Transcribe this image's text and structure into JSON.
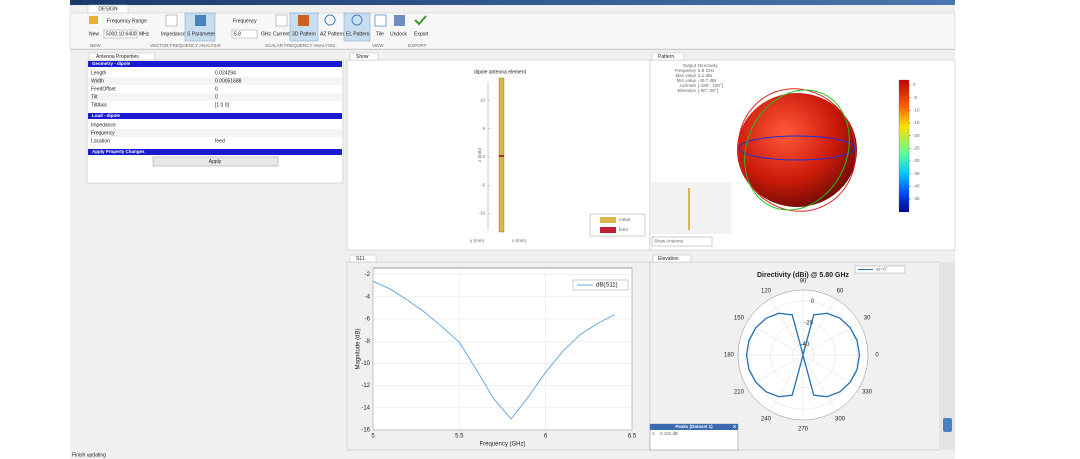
{
  "app": {
    "tab": "DESIGN",
    "status": "Finish updating"
  },
  "toolbar": {
    "frequency_range": "Frequency Range",
    "new": "New",
    "range_input": "5000:10:6400",
    "range_unit": "MHz",
    "impedance": "Impedance",
    "s_parameter": "S Parameter",
    "frequency": "Frequency",
    "freq_input": "5.8",
    "freq_unit": "GHz",
    "current": "Current",
    "pattern_3d": "3D Pattern",
    "az_pattern": "AZ Pattern",
    "el_pattern": "EL Pattern",
    "tile": "Tile",
    "undock": "Undock",
    "export": "Export"
  },
  "sections": [
    "NEW",
    "VECTOR FREQUENCY ANALYSIS",
    "SCALAR FREQUENCY ANALYSIS",
    "VIEW",
    "EXPORT"
  ],
  "properties": {
    "tab": "Antenna Properties",
    "groups": [
      {
        "header": "Geometry - dipole",
        "rows": [
          [
            "Length",
            "0.024294"
          ],
          [
            "Width",
            "0.00051688"
          ],
          [
            "FeedOffset",
            "0"
          ],
          [
            "Tilt",
            "0"
          ],
          [
            "TiltAxis",
            "[1 0 0]"
          ]
        ]
      },
      {
        "header": "Load - dipole",
        "rows": [
          [
            "Impedance",
            ""
          ],
          [
            "Frequency",
            ""
          ],
          [
            "Location",
            "feed"
          ]
        ]
      }
    ],
    "apply_header": "Apply Property Changes",
    "apply_button": "Apply"
  },
  "show_panel": {
    "tab": "Show",
    "title": "dipole antenna element",
    "zlabel": "z (mm)",
    "ylabel": "y (mm)",
    "xlabel": "x (mm)",
    "zticks": [
      10,
      5,
      0,
      -5,
      -10
    ],
    "legend": [
      "metal",
      "feed"
    ]
  },
  "pattern_panel": {
    "tab": "Pattern",
    "info": [
      [
        "Output",
        "Directivity"
      ],
      [
        "Frequency",
        "5.8 GHz"
      ],
      [
        "Max value",
        "2.1 dBi"
      ],
      [
        "Min value",
        "-49.7 dBi"
      ],
      [
        "Azimuth",
        "[-180°, 180°]"
      ],
      [
        "Elevation",
        "[-90°, 90°]"
      ]
    ],
    "colorbar_ticks": [
      0,
      -5,
      -10,
      -15,
      -20,
      -25,
      -30,
      -35,
      -40,
      -45
    ],
    "dropdown": "Show Antenna"
  },
  "s11_tab": "S11",
  "elevation_tab": "Elevation",
  "peaks": {
    "title": "Peaks (Dataset 1)",
    "close": "X",
    "row": [
      "1",
      "2.102 dB"
    ]
  },
  "chart_data": [
    {
      "type": "line",
      "xlabel": "Frequency (GHz)",
      "ylabel": "Magnitude (dB)",
      "x": [
        5,
        5.1,
        5.2,
        5.3,
        5.4,
        5.5,
        5.6,
        5.7,
        5.8,
        5.9,
        6,
        6.1,
        6.2,
        6.3,
        6.4
      ],
      "series": [
        {
          "name": "dB(S11)",
          "color": "#5aa3de",
          "values": [
            -2.6,
            -3.3,
            -4.3,
            -5.4,
            -6.7,
            -8.1,
            -10.6,
            -13.2,
            -15,
            -13,
            -10.8,
            -8.9,
            -7.4,
            -6.4,
            -5.6
          ]
        }
      ],
      "xlim": [
        5,
        6.5
      ],
      "ylim": [
        -16,
        -1.4
      ],
      "xticks": [
        5,
        5.5,
        6,
        6.5
      ],
      "yticks": [
        -2,
        -4,
        -6,
        -8,
        -10,
        -12,
        -14,
        -16
      ],
      "grid": true
    },
    {
      "type": "polar",
      "title": "Directivity (dBi) @ 5.80 GHz",
      "series": [
        {
          "name": "az=0°",
          "color": "#1f6fb5",
          "theta": [
            0,
            15,
            30,
            45,
            60,
            75,
            90,
            105,
            120,
            135,
            150,
            165,
            180,
            195,
            210,
            225,
            240,
            255,
            270,
            285,
            300,
            315,
            330,
            345
          ],
          "values": [
            2.1,
            1.7,
            0.3,
            -1.9,
            -5.5,
            -11.6,
            -49.7,
            -11.6,
            -5.5,
            -1.9,
            0.3,
            1.7,
            2.1,
            1.7,
            0.3,
            -1.9,
            -5.5,
            -11.6,
            -49.7,
            -11.6,
            -5.5,
            -1.9,
            0.3,
            1.7
          ]
        }
      ],
      "rlim": [
        -50,
        10
      ],
      "rticks": [
        0,
        -20,
        -40
      ],
      "thetaticks": [
        0,
        30,
        60,
        90,
        120,
        150,
        180,
        210,
        240,
        270,
        300,
        330
      ]
    }
  ]
}
